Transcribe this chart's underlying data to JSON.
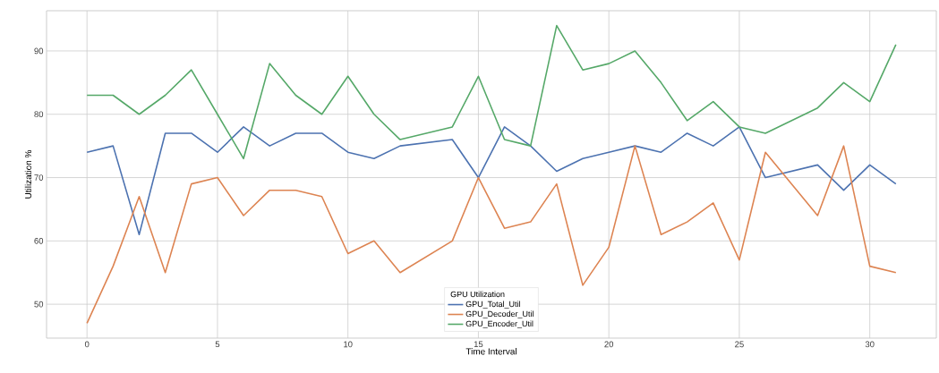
{
  "chart_data": {
    "type": "line",
    "xlabel": "Time Interval",
    "ylabel": "Utilization %",
    "legend_title": "GPU Utilization",
    "x": [
      0,
      1,
      2,
      3,
      4,
      5,
      6,
      7,
      8,
      9,
      10,
      11,
      12,
      14,
      15,
      16,
      17,
      18,
      19,
      20,
      21,
      22,
      23,
      24,
      25,
      26,
      28,
      29,
      30,
      31
    ],
    "series": [
      {
        "name": "GPU_Total_Util",
        "color": "#4c72b0",
        "values": [
          74,
          75,
          61,
          77,
          77,
          74,
          78,
          75,
          77,
          77,
          74,
          73,
          75,
          76,
          70,
          78,
          75,
          71,
          73,
          74,
          75,
          74,
          77,
          75,
          78,
          70,
          72,
          68,
          72,
          69
        ]
      },
      {
        "name": "GPU_Decoder_Util",
        "color": "#dd8452",
        "values": [
          47,
          56,
          67,
          55,
          69,
          70,
          64,
          68,
          68,
          67,
          58,
          60,
          55,
          60,
          70,
          62,
          63,
          69,
          53,
          59,
          75,
          61,
          63,
          66,
          57,
          74,
          64,
          75,
          56,
          55
        ]
      },
      {
        "name": "GPU_Encoder_Util",
        "color": "#55a868",
        "values": [
          83,
          83,
          80,
          83,
          87,
          80,
          73,
          88,
          83,
          80,
          86,
          80,
          76,
          78,
          86,
          76,
          75,
          94,
          87,
          88,
          90,
          85,
          79,
          82,
          78,
          77,
          81,
          85,
          82,
          91
        ]
      }
    ],
    "xlim": [
      -1.55,
      32.55
    ],
    "ylim": [
      44.65,
      96.35
    ],
    "xticks": [
      0,
      5,
      10,
      15,
      20,
      25,
      30
    ],
    "yticks": [
      50,
      60,
      70,
      80,
      90
    ],
    "grid": true,
    "legend": "bottom"
  }
}
